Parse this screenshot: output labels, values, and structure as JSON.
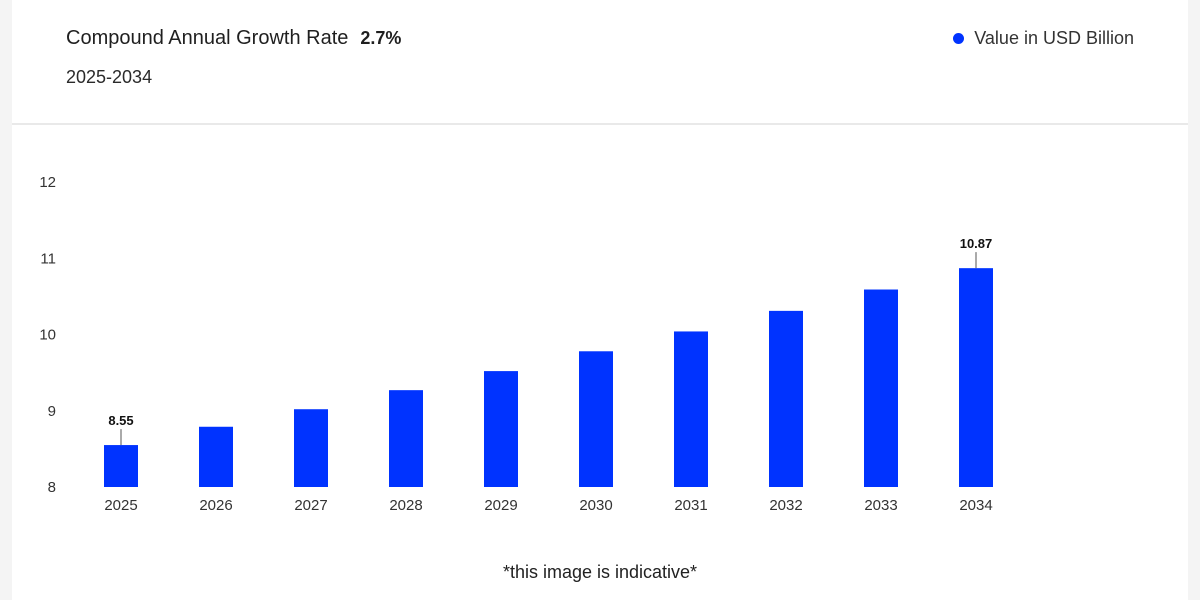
{
  "header": {
    "title": "Compound Annual Growth Rate",
    "rate": "2.7%",
    "period": "2025-2034",
    "legend_label": "Value in USD Billion"
  },
  "footnote": "*this image is indicative*",
  "colors": {
    "bar": "#0033ff",
    "background": "#ffffff"
  },
  "chart_data": {
    "type": "bar",
    "title": "",
    "xlabel": "",
    "ylabel": "",
    "categories": [
      "2025",
      "2026",
      "2027",
      "2028",
      "2029",
      "2030",
      "2031",
      "2032",
      "2033",
      "2034"
    ],
    "series": [
      {
        "name": "Value in USD Billion",
        "values": [
          8.55,
          8.79,
          9.02,
          9.27,
          9.52,
          9.78,
          10.04,
          10.31,
          10.59,
          10.87
        ]
      }
    ],
    "data_labels": [
      {
        "category": "2025",
        "text": "8.55"
      },
      {
        "category": "2034",
        "text": "10.87"
      }
    ],
    "ylim": [
      8,
      12
    ],
    "yticks": [
      8,
      9,
      10,
      11,
      12
    ],
    "grid": false,
    "legend": "top-right"
  }
}
